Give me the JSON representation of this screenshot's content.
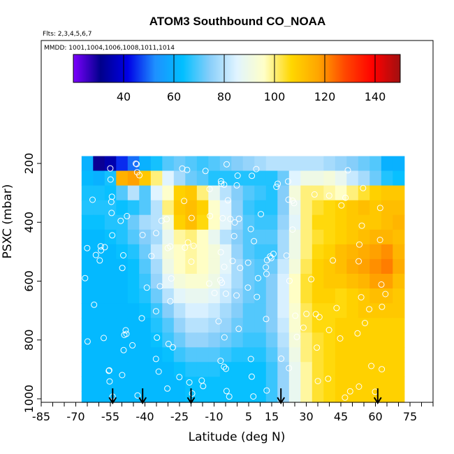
{
  "chart_data": {
    "type": "heatmap",
    "title": "ATOM3 Southbound CO_NOAA",
    "flights_note": "Flts: 2,3,4,5,6,7",
    "dates_note": "MMDD: 1001,1004,1006,1008,1011,1014",
    "xlabel": "Latitude (deg N)",
    "ylabel": "PSXC (mbar)",
    "xlim": [
      -85,
      85
    ],
    "ylim": [
      1000,
      100
    ],
    "x_ticks": [
      -85,
      -70,
      -55,
      -40,
      -25,
      -10,
      5,
      15,
      30,
      45,
      60,
      75
    ],
    "x_tick_labels": [
      "-85",
      "-70",
      "-55",
      "-40",
      "-25",
      "-10",
      "5",
      "15",
      "30",
      "45",
      "60",
      "75"
    ],
    "y_ticks": [
      200,
      400,
      600,
      800,
      1000
    ],
    "y_tick_labels": [
      "200",
      "400",
      "600",
      "800",
      "1000"
    ],
    "colorbar": {
      "range": [
        20,
        150
      ],
      "ticks": [
        40,
        60,
        80,
        100,
        120,
        140
      ],
      "tick_labels": [
        "40",
        "60",
        "80",
        "100",
        "120",
        "140"
      ],
      "colors": [
        "#7d00ff",
        "#00008b",
        "#0000e6",
        "#1e90ff",
        "#00bfff",
        "#87cefa",
        "#e0f4ff",
        "#ffffc8",
        "#ffd700",
        "#ffa500",
        "#ff4500",
        "#ff0000",
        "#a01010"
      ]
    },
    "latitudes": [
      -65,
      -60,
      -55,
      -50,
      -45,
      -40,
      -35,
      -30,
      -25,
      -20,
      -15,
      -10,
      -5,
      0,
      5,
      10,
      15,
      20,
      25,
      30,
      35,
      40,
      45,
      50,
      55,
      60,
      65,
      70
    ],
    "pressure_levels": [
      200,
      250,
      300,
      350,
      400,
      450,
      500,
      550,
      600,
      650,
      700,
      750,
      800,
      850,
      900,
      950,
      1000
    ],
    "values": [
      [
        60,
        30,
        35,
        45,
        50,
        60,
        65,
        70,
        72,
        70,
        68,
        70,
        72,
        74,
        76,
        78,
        80,
        80,
        80,
        80,
        80,
        78,
        76,
        74,
        72,
        70,
        60,
        60
      ],
      [
        62,
        60,
        65,
        115,
        118,
        110,
        100,
        85,
        78,
        72,
        70,
        66,
        66,
        66,
        66,
        66,
        66,
        72,
        85,
        90,
        90,
        92,
        88,
        82,
        78,
        72,
        66,
        64
      ],
      [
        65,
        65,
        64,
        70,
        80,
        70,
        85,
        95,
        108,
        110,
        100,
        88,
        80,
        74,
        70,
        68,
        66,
        74,
        92,
        100,
        100,
        98,
        96,
        100,
        104,
        108,
        110,
        110
      ],
      [
        66,
        66,
        66,
        64,
        66,
        70,
        80,
        100,
        110,
        112,
        108,
        95,
        85,
        75,
        68,
        66,
        66,
        74,
        88,
        100,
        104,
        106,
        108,
        110,
        112,
        110,
        112,
        112
      ],
      [
        64,
        64,
        66,
        66,
        72,
        78,
        80,
        92,
        108,
        112,
        106,
        96,
        86,
        76,
        70,
        68,
        68,
        76,
        86,
        100,
        106,
        106,
        108,
        110,
        110,
        110,
        112,
        114
      ],
      [
        62,
        62,
        64,
        66,
        70,
        74,
        78,
        88,
        98,
        100,
        96,
        88,
        80,
        74,
        70,
        70,
        70,
        78,
        90,
        100,
        104,
        106,
        108,
        110,
        112,
        114,
        114,
        112
      ],
      [
        62,
        62,
        62,
        64,
        66,
        72,
        82,
        92,
        96,
        98,
        96,
        92,
        86,
        76,
        70,
        68,
        68,
        78,
        90,
        100,
        106,
        108,
        112,
        114,
        116,
        118,
        120,
        114
      ],
      [
        62,
        62,
        62,
        62,
        64,
        70,
        78,
        90,
        96,
        98,
        96,
        92,
        86,
        78,
        72,
        70,
        72,
        82,
        92,
        102,
        108,
        110,
        112,
        116,
        118,
        120,
        122,
        116
      ],
      [
        62,
        62,
        62,
        62,
        64,
        68,
        76,
        86,
        92,
        94,
        94,
        90,
        84,
        78,
        72,
        70,
        74,
        84,
        96,
        104,
        108,
        110,
        110,
        112,
        114,
        118,
        118,
        112
      ],
      [
        62,
        62,
        62,
        62,
        64,
        66,
        72,
        80,
        86,
        88,
        88,
        86,
        82,
        76,
        72,
        70,
        74,
        84,
        96,
        104,
        108,
        108,
        106,
        108,
        110,
        112,
        112,
        110
      ],
      [
        62,
        62,
        62,
        62,
        62,
        64,
        68,
        74,
        80,
        84,
        84,
        82,
        78,
        74,
        70,
        70,
        74,
        84,
        94,
        102,
        106,
        106,
        106,
        108,
        110,
        110,
        110,
        110
      ],
      [
        62,
        62,
        62,
        62,
        62,
        62,
        66,
        70,
        76,
        80,
        80,
        78,
        76,
        72,
        70,
        70,
        74,
        82,
        94,
        102,
        106,
        106,
        108,
        108,
        108,
        108,
        108,
        108
      ],
      [
        62,
        62,
        62,
        62,
        62,
        62,
        64,
        68,
        72,
        76,
        76,
        74,
        72,
        70,
        68,
        68,
        72,
        80,
        92,
        100,
        104,
        106,
        108,
        108,
        108,
        108,
        108,
        108
      ],
      [
        62,
        62,
        62,
        62,
        62,
        62,
        62,
        64,
        68,
        70,
        70,
        70,
        68,
        66,
        66,
        66,
        70,
        78,
        90,
        100,
        104,
        106,
        108,
        108,
        108,
        108,
        108,
        108
      ],
      [
        62,
        62,
        62,
        62,
        62,
        62,
        62,
        62,
        64,
        66,
        66,
        66,
        64,
        64,
        64,
        64,
        68,
        76,
        88,
        98,
        104,
        106,
        108,
        108,
        108,
        108,
        108,
        108
      ],
      [
        62,
        62,
        62,
        62,
        62,
        62,
        62,
        62,
        62,
        64,
        64,
        64,
        64,
        64,
        64,
        64,
        68,
        76,
        88,
        98,
        104,
        106,
        108,
        108,
        108,
        108,
        108,
        108
      ],
      [
        62,
        62,
        62,
        62,
        62,
        62,
        62,
        62,
        62,
        64,
        64,
        64,
        64,
        64,
        64,
        64,
        68,
        76,
        88,
        98,
        104,
        106,
        108,
        108,
        108,
        108,
        108,
        108
      ]
    ],
    "arrows_at_latitude": [
      -54,
      -41,
      -20,
      19,
      61
    ],
    "grid": false,
    "legend": "colorbar-top"
  }
}
